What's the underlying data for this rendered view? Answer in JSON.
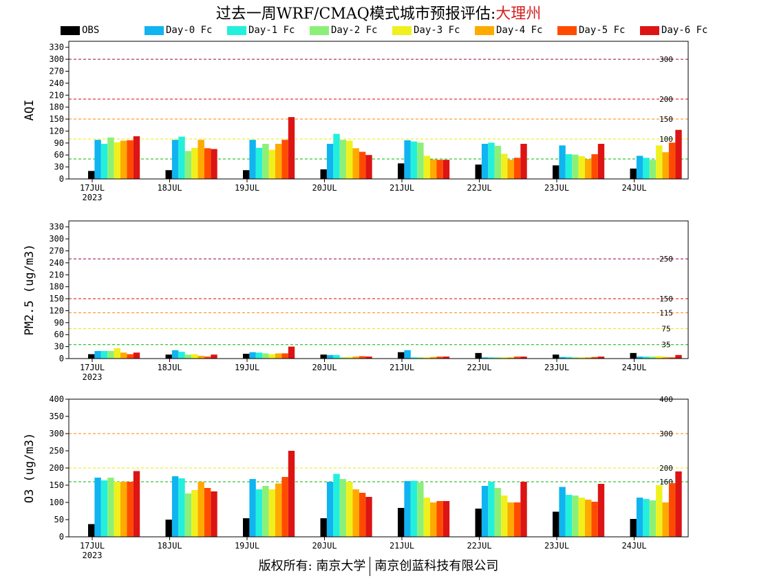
{
  "title": {
    "main": "过去一周WRF/CMAQ模式城市预报评估:",
    "city": "大理州"
  },
  "footer": {
    "left": "版权所有: 南京大学",
    "right": "南京创蓝科技有限公司"
  },
  "legend": [
    {
      "label": "OBS",
      "color": "#000000"
    },
    {
      "label": "Day-0 Fc",
      "color": "#0fb4f0"
    },
    {
      "label": "Day-1 Fc",
      "color": "#22f0dc"
    },
    {
      "label": "Day-2 Fc",
      "color": "#8cf078"
    },
    {
      "label": "Day-3 Fc",
      "color": "#f0f01e"
    },
    {
      "label": "Day-4 Fc",
      "color": "#ffaa00"
    },
    {
      "label": "Day-5 Fc",
      "color": "#ff4b00"
    },
    {
      "label": "Day-6 Fc",
      "color": "#dc1414"
    }
  ],
  "chart_data": [
    {
      "type": "bar",
      "ylabel": "AQI",
      "ylim": [
        0,
        345
      ],
      "yticks": [
        0,
        30,
        60,
        90,
        120,
        150,
        180,
        210,
        240,
        270,
        300,
        330
      ],
      "categories": [
        "17JUL",
        "18JUL",
        "19JUL",
        "20JUL",
        "21JUL",
        "22JUL",
        "23JUL",
        "24JUL"
      ],
      "year_label": "2023",
      "thresholds": [
        {
          "value": 50,
          "label": "50",
          "color": "#00b400"
        },
        {
          "value": 100,
          "label": "100",
          "color": "#e8e800"
        },
        {
          "value": 150,
          "label": "150",
          "color": "#ff8000"
        },
        {
          "value": 200,
          "label": "200",
          "color": "#e00000"
        },
        {
          "value": 300,
          "label": "300",
          "color": "#99004c"
        }
      ],
      "series": [
        {
          "name": "OBS",
          "values": [
            20,
            22,
            22,
            24,
            39,
            36,
            34,
            26
          ]
        },
        {
          "name": "Day-0 Fc",
          "values": [
            98,
            98,
            98,
            88,
            97,
            88,
            84,
            58
          ]
        },
        {
          "name": "Day-1 Fc",
          "values": [
            88,
            106,
            78,
            113,
            94,
            91,
            62,
            53
          ]
        },
        {
          "name": "Day-2 Fc",
          "values": [
            104,
            70,
            88,
            98,
            91,
            83,
            61,
            48
          ]
        },
        {
          "name": "Day-3 Fc",
          "values": [
            92,
            78,
            73,
            96,
            58,
            63,
            57,
            84
          ]
        },
        {
          "name": "Day-4 Fc",
          "values": [
            96,
            98,
            88,
            77,
            49,
            48,
            50,
            67
          ]
        },
        {
          "name": "Day-5 Fc",
          "values": [
            97,
            77,
            98,
            68,
            48,
            53,
            62,
            91
          ]
        },
        {
          "name": "Day-6 Fc",
          "values": [
            107,
            75,
            155,
            60,
            48,
            88,
            88,
            123
          ]
        }
      ]
    },
    {
      "type": "bar",
      "ylabel": "PM2.5 (ug/m3)",
      "ylim": [
        0,
        345
      ],
      "yticks": [
        0,
        30,
        60,
        90,
        120,
        150,
        180,
        210,
        240,
        270,
        300,
        330
      ],
      "categories": [
        "17JUL",
        "18JUL",
        "19JUL",
        "20JUL",
        "21JUL",
        "22JUL",
        "23JUL",
        "24JUL"
      ],
      "year_label": "2023",
      "thresholds": [
        {
          "value": 35,
          "label": "35",
          "color": "#00b400"
        },
        {
          "value": 75,
          "label": "75",
          "color": "#e8e800"
        },
        {
          "value": 115,
          "label": "115",
          "color": "#ff8000"
        },
        {
          "value": 150,
          "label": "150",
          "color": "#e00000"
        },
        {
          "value": 250,
          "label": "250",
          "color": "#99004c"
        }
      ],
      "series": [
        {
          "name": "OBS",
          "values": [
            11,
            10,
            12,
            10,
            16,
            14,
            10,
            14
          ]
        },
        {
          "name": "Day-0 Fc",
          "values": [
            19,
            21,
            16,
            9,
            21,
            3,
            4,
            5
          ]
        },
        {
          "name": "Day-1 Fc",
          "values": [
            19,
            17,
            15,
            9,
            3,
            3,
            4,
            5
          ]
        },
        {
          "name": "Day-2 Fc",
          "values": [
            19,
            10,
            13,
            3,
            3,
            3,
            3,
            5
          ]
        },
        {
          "name": "Day-3 Fc",
          "values": [
            26,
            11,
            11,
            4,
            3,
            3,
            3,
            6
          ]
        },
        {
          "name": "Day-4 Fc",
          "values": [
            15,
            7,
            13,
            5,
            4,
            3,
            3,
            4
          ]
        },
        {
          "name": "Day-5 Fc",
          "values": [
            11,
            5,
            13,
            6,
            5,
            5,
            4,
            3
          ]
        },
        {
          "name": "Day-6 Fc",
          "values": [
            15,
            10,
            30,
            5,
            5,
            5,
            5,
            9
          ]
        }
      ]
    },
    {
      "type": "bar",
      "ylabel": "O3 (ug/m3)",
      "ylim": [
        0,
        400
      ],
      "yticks": [
        0,
        50,
        100,
        150,
        200,
        250,
        300,
        350,
        400
      ],
      "categories": [
        "17JUL",
        "18JUL",
        "19JUL",
        "20JUL",
        "21JUL",
        "22JUL",
        "23JUL",
        "24JUL"
      ],
      "year_label": "2023",
      "thresholds": [
        {
          "value": 160,
          "label": "160",
          "color": "#00b400"
        },
        {
          "value": 200,
          "label": "200",
          "color": "#e8e800"
        },
        {
          "value": 300,
          "label": "300",
          "color": "#ff8000"
        },
        {
          "value": 400,
          "label": "400",
          "color": "#e00000"
        }
      ],
      "series": [
        {
          "name": "OBS",
          "values": [
            37,
            50,
            54,
            54,
            84,
            82,
            73,
            52
          ]
        },
        {
          "name": "Day-0 Fc",
          "values": [
            172,
            176,
            168,
            160,
            162,
            148,
            145,
            114
          ]
        },
        {
          "name": "Day-1 Fc",
          "values": [
            164,
            170,
            138,
            183,
            163,
            160,
            122,
            110
          ]
        },
        {
          "name": "Day-2 Fc",
          "values": [
            172,
            126,
            148,
            168,
            158,
            142,
            120,
            106
          ]
        },
        {
          "name": "Day-3 Fc",
          "values": [
            160,
            136,
            138,
            160,
            114,
            120,
            114,
            150
          ]
        },
        {
          "name": "Day-4 Fc",
          "values": [
            160,
            160,
            155,
            138,
            100,
            100,
            108,
            100
          ]
        },
        {
          "name": "Day-5 Fc",
          "values": [
            160,
            142,
            174,
            128,
            104,
            100,
            102,
            156
          ]
        },
        {
          "name": "Day-6 Fc",
          "values": [
            191,
            132,
            250,
            116,
            104,
            160,
            154,
            190
          ]
        }
      ]
    }
  ]
}
